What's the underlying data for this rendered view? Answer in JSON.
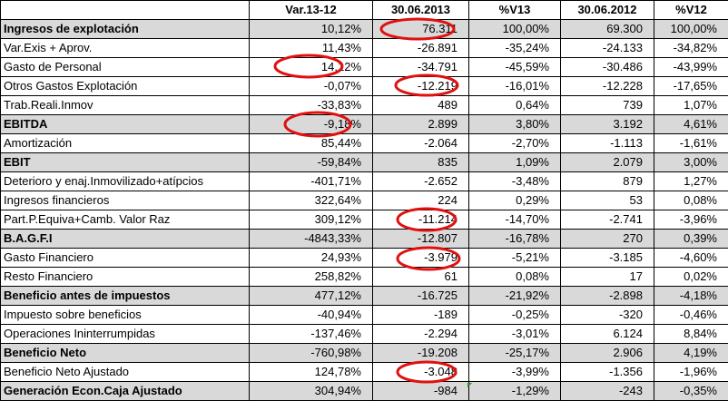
{
  "headers": [
    "",
    "Var.13-12",
    "30.06.2013",
    "%V13",
    "30.06.2012",
    "%V12"
  ],
  "rows": [
    {
      "label": "Ingresos de explotación",
      "bold": true,
      "values": [
        "10,12%",
        "76.311",
        "100,00%",
        "69.300",
        "100,00%"
      ]
    },
    {
      "label": "Var.Exis + Aprov.",
      "bold": false,
      "values": [
        "11,43%",
        "-26.891",
        "-35,24%",
        "-24.133",
        "-34,82%"
      ]
    },
    {
      "label": "Gasto de Personal",
      "bold": false,
      "values": [
        "14,12%",
        "-34.791",
        "-45,59%",
        "-30.486",
        "-43,99%"
      ]
    },
    {
      "label": "Otros Gastos Explotación",
      "bold": false,
      "values": [
        "-0,07%",
        "-12.219",
        "-16,01%",
        "-12.228",
        "-17,65%"
      ]
    },
    {
      "label": "Trab.Reali.Inmov",
      "bold": false,
      "values": [
        "-33,83%",
        "489",
        "0,64%",
        "739",
        "1,07%"
      ]
    },
    {
      "label": "EBITDA",
      "bold": true,
      "values": [
        "-9,18%",
        "2.899",
        "3,80%",
        "3.192",
        "4,61%"
      ]
    },
    {
      "label": "Amortización",
      "bold": false,
      "values": [
        "85,44%",
        "-2.064",
        "-2,70%",
        "-1.113",
        "-1,61%"
      ]
    },
    {
      "label": "EBIT",
      "bold": true,
      "values": [
        "-59,84%",
        "835",
        "1,09%",
        "2.079",
        "3,00%"
      ]
    },
    {
      "label": "Deterioro y enaj.Inmovilizado+atípcios",
      "bold": false,
      "values": [
        "-401,71%",
        "-2.652",
        "-3,48%",
        "879",
        "1,27%"
      ]
    },
    {
      "label": "Ingresos financieros",
      "bold": false,
      "values": [
        "322,64%",
        "224",
        "0,29%",
        "53",
        "0,08%"
      ]
    },
    {
      "label": "Part.P.Equiva+Camb. Valor Raz",
      "bold": false,
      "values": [
        "309,12%",
        "-11.214",
        "-14,70%",
        "-2.741",
        "-3,96%"
      ]
    },
    {
      "label": "B.A.G.F.I",
      "bold": true,
      "values": [
        "-4843,33%",
        "-12.807",
        "-16,78%",
        "270",
        "0,39%"
      ]
    },
    {
      "label": "Gasto Financiero",
      "bold": false,
      "values": [
        "24,93%",
        "-3.979",
        "-5,21%",
        "-3.185",
        "-4,60%"
      ]
    },
    {
      "label": "Resto Financiero",
      "bold": false,
      "values": [
        "258,82%",
        "61",
        "0,08%",
        "17",
        "0,02%"
      ]
    },
    {
      "label": "Beneficio antes de impuestos",
      "bold": true,
      "values": [
        "477,12%",
        "-16.725",
        "-21,92%",
        "-2.898",
        "-4,18%"
      ]
    },
    {
      "label": "Impuesto sobre beneficios",
      "bold": false,
      "values": [
        "-40,94%",
        "-189",
        "-0,25%",
        "-320",
        "-0,46%"
      ]
    },
    {
      "label": "Operaciones Ininterrumpidas",
      "bold": false,
      "values": [
        "-137,46%",
        "-2.294",
        "-3,01%",
        "6.124",
        "8,84%"
      ]
    },
    {
      "label": "Beneficio Neto",
      "bold": true,
      "values": [
        "-760,98%",
        "-19.208",
        "-25,17%",
        "2.906",
        "4,19%"
      ]
    },
    {
      "label": "Beneficio Neto Ajustado",
      "bold": false,
      "values": [
        "124,78%",
        "-3.048",
        "-3,99%",
        "-1.356",
        "-1,96%"
      ]
    },
    {
      "label": "Generación Econ.Caja Ajustado",
      "bold": true,
      "values": [
        "304,94%",
        "-984",
        "-1,29%",
        "-243",
        "-0,35%"
      ]
    }
  ],
  "highlight_color": "#e01010",
  "row_shade_color": "#d9d9d9"
}
